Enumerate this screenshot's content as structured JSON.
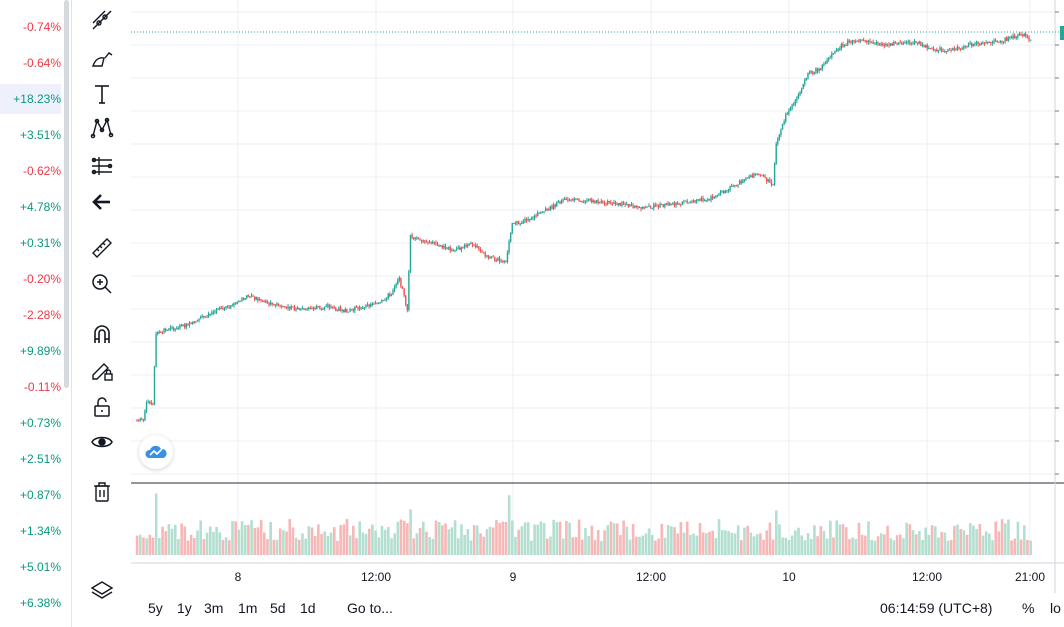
{
  "watchlist": {
    "items": [
      {
        "change": "-0.74%",
        "dir": "neg"
      },
      {
        "change": "-0.64%",
        "dir": "neg"
      },
      {
        "change": "+18.23%",
        "dir": "pos"
      },
      {
        "change": "+3.51%",
        "dir": "pos"
      },
      {
        "change": "-0.62%",
        "dir": "neg"
      },
      {
        "change": "+4.78%",
        "dir": "pos"
      },
      {
        "change": "+0.31%",
        "dir": "pos"
      },
      {
        "change": "-0.20%",
        "dir": "neg"
      },
      {
        "change": "-2.28%",
        "dir": "neg"
      },
      {
        "change": "+9.89%",
        "dir": "pos"
      },
      {
        "change": "-0.11%",
        "dir": "neg"
      },
      {
        "change": "+0.73%",
        "dir": "pos"
      },
      {
        "change": "+2.51%",
        "dir": "pos"
      },
      {
        "change": "+0.87%",
        "dir": "pos"
      },
      {
        "change": "+1.34%",
        "dir": "pos"
      },
      {
        "change": "+5.01%",
        "dir": "pos"
      },
      {
        "change": "+6.38%",
        "dir": "pos"
      }
    ]
  },
  "toolbar": {
    "tools": [
      "trend-line-tool-icon",
      "brush-tool-icon",
      "text-tool-icon",
      "pattern-tool-icon",
      "prediction-tool-icon",
      "back-arrow-icon",
      "ruler-icon",
      "zoom-in-icon",
      "magnet-icon",
      "lock-drawings-icon",
      "unlock-icon",
      "eye-icon",
      "trash-icon",
      "layers-icon"
    ]
  },
  "chart": {
    "time_labels": [
      "8",
      "12:00",
      "9",
      "12:00",
      "10",
      "12:00",
      "21:00"
    ],
    "colors": {
      "up": "#26a69a",
      "down": "#ef5350",
      "up_vol": "#b2dfcf",
      "down_vol": "#f7b7b7",
      "grid": "#eceff4",
      "last_price_line": "#22a4a4"
    }
  },
  "chart_data": {
    "type": "candlestick",
    "title": "",
    "x_labels": [
      "8",
      "12:00",
      "9",
      "12:00",
      "10",
      "12:00",
      "21:00"
    ],
    "close_path": [
      [
        0,
        10.0
      ],
      [
        4,
        10.0
      ],
      [
        6,
        10.9
      ],
      [
        10,
        10.8
      ],
      [
        12,
        14.1
      ],
      [
        30,
        14.4
      ],
      [
        40,
        14.8
      ],
      [
        60,
        15.4
      ],
      [
        70,
        15.8
      ],
      [
        80,
        15.5
      ],
      [
        100,
        15.2
      ],
      [
        120,
        15.3
      ],
      [
        130,
        15.1
      ],
      [
        150,
        15.4
      ],
      [
        160,
        15.9
      ],
      [
        165,
        16.6
      ],
      [
        170,
        15.2
      ],
      [
        172,
        18.6
      ],
      [
        180,
        18.4
      ],
      [
        200,
        17.9
      ],
      [
        210,
        18.3
      ],
      [
        220,
        17.6
      ],
      [
        232,
        17.4
      ],
      [
        236,
        19.1
      ],
      [
        250,
        19.5
      ],
      [
        270,
        20.3
      ],
      [
        300,
        20.1
      ],
      [
        320,
        19.9
      ],
      [
        340,
        20.1
      ],
      [
        360,
        20.3
      ],
      [
        380,
        21.1
      ],
      [
        390,
        21.5
      ],
      [
        396,
        21.2
      ],
      [
        400,
        21.0
      ],
      [
        402,
        22.8
      ],
      [
        408,
        24.2
      ],
      [
        414,
        24.9
      ],
      [
        418,
        25.5
      ],
      [
        422,
        26.1
      ],
      [
        432,
        26.5
      ],
      [
        440,
        27.3
      ],
      [
        450,
        27.7
      ],
      [
        470,
        27.5
      ],
      [
        490,
        27.6
      ],
      [
        500,
        27.3
      ],
      [
        510,
        27.2
      ],
      [
        525,
        27.5
      ],
      [
        540,
        27.6
      ],
      [
        550,
        27.8
      ],
      [
        556,
        28.0
      ],
      [
        562,
        27.7
      ]
    ],
    "volume_note": "relative volume bars beneath candles"
  }
}
